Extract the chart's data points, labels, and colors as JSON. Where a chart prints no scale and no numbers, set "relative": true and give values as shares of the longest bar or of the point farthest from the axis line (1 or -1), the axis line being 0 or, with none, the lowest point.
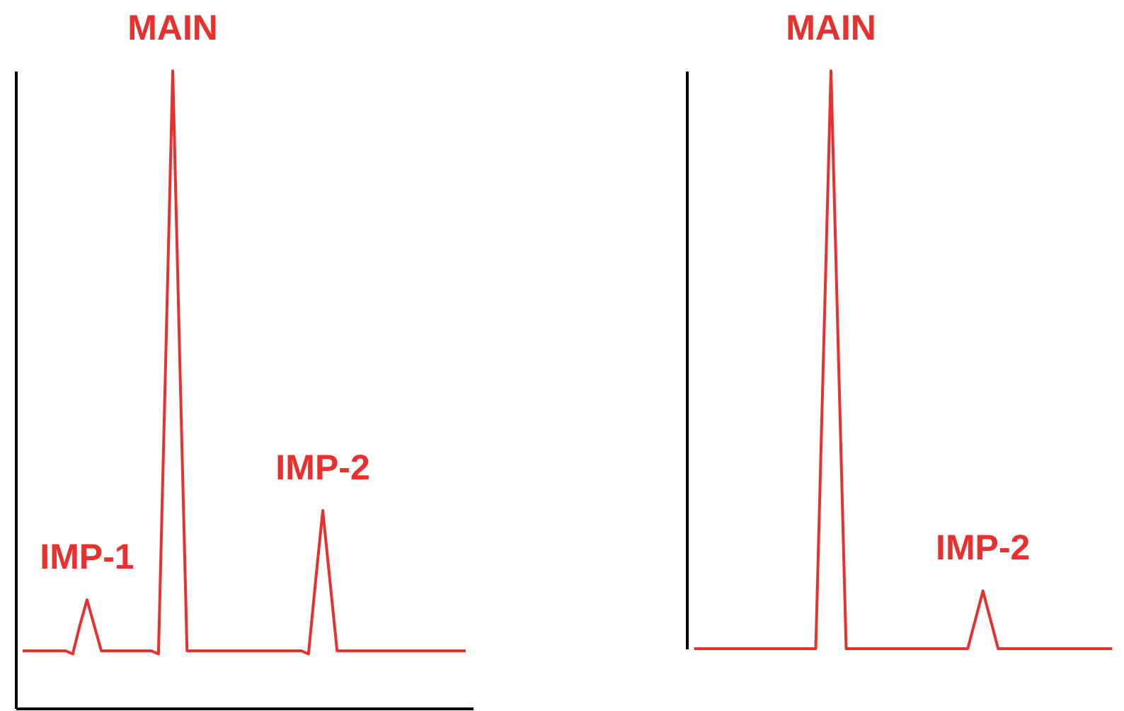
{
  "chart_data": [
    {
      "type": "line",
      "relative": true,
      "categories": [
        null,
        null,
        null,
        null,
        null,
        null,
        null,
        null,
        null,
        null,
        null,
        null,
        null,
        null,
        null,
        null,
        null,
        null,
        null,
        null,
        null,
        null,
        null,
        null,
        null,
        null,
        null,
        null,
        null,
        null,
        null,
        null,
        null,
        null,
        null,
        null,
        null,
        null,
        null,
        null,
        null,
        null,
        null,
        null,
        null,
        null,
        null,
        null,
        null,
        null,
        null,
        null,
        null,
        null,
        null,
        null,
        null,
        null,
        null,
        null,
        null,
        null,
        null
      ],
      "series": [
        {
          "color": "#e8302e",
          "values": [
            0.09,
            0.09,
            0.09,
            0.09,
            0.09,
            0.09,
            0.09,
            0.085,
            0.13,
            0.17,
            0.13,
            0.09,
            0.09,
            0.09,
            0.09,
            0.09,
            0.09,
            0.09,
            0.09,
            0.085,
            0.54,
            1,
            0.54,
            0.09,
            0.09,
            0.09,
            0.09,
            0.09,
            0.09,
            0.09,
            0.09,
            0.09,
            0.09,
            0.09,
            0.09,
            0.09,
            0.09,
            0.09,
            0.09,
            0.09,
            0.085,
            0.2,
            0.31,
            0.2,
            0.09,
            0.09,
            0.09,
            0.09,
            0.09,
            0.09,
            0.09,
            0.09,
            0.09,
            0.09,
            0.09,
            0.09,
            0.09,
            0.09,
            0.09,
            0.09,
            0.09,
            0.09,
            0.09
          ]
        }
      ],
      "annotations": [
        {
          "text": "MAIN",
          "y": 1
        },
        {
          "text": "IMP-1",
          "y": 0.17
        },
        {
          "text": "IMP-2",
          "y": 0.31
        }
      ]
    },
    {
      "type": "line",
      "relative": true,
      "categories": [
        null,
        null,
        null,
        null,
        null,
        null,
        null,
        null,
        null,
        null,
        null,
        null,
        null,
        null,
        null,
        null,
        null,
        null,
        null,
        null,
        null,
        null,
        null,
        null,
        null,
        null,
        null,
        null,
        null,
        null,
        null,
        null,
        null,
        null,
        null,
        null,
        null,
        null,
        null,
        null,
        null,
        null,
        null,
        null,
        null,
        null,
        null,
        null,
        null,
        null,
        null,
        null,
        null,
        null,
        null,
        null
      ],
      "series": [
        {
          "color": "#e8302e",
          "values": [
            0,
            0,
            0,
            0,
            0,
            0,
            0,
            0,
            0,
            0,
            0,
            0,
            0,
            0,
            0,
            0,
            0,
            0.5,
            1,
            0.5,
            0,
            0,
            0,
            0,
            0,
            0,
            0,
            0,
            0,
            0,
            0,
            0,
            0,
            0,
            0,
            0,
            0,
            0.05,
            0.1,
            0.05,
            0,
            0,
            0,
            0,
            0,
            0,
            0,
            0,
            0,
            0,
            0,
            0,
            0,
            0,
            0,
            0
          ]
        }
      ],
      "annotations": [
        {
          "text": "MAIN",
          "y": 1
        },
        {
          "text": "IMP-2",
          "y": 0.1
        }
      ]
    }
  ]
}
